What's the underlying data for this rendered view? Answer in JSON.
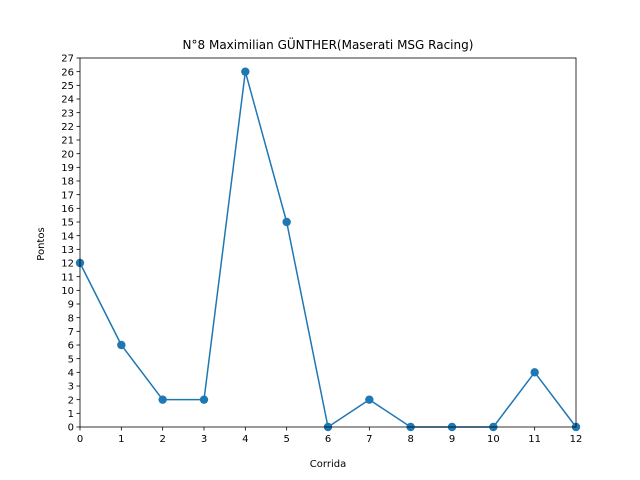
{
  "chart_data": {
    "type": "line",
    "title": "N°8 Maximilian GÜNTHER(Maserati MSG Racing)",
    "xlabel": "Corrida",
    "ylabel": "Pontos",
    "x": [
      0,
      1,
      2,
      3,
      4,
      5,
      6,
      7,
      8,
      9,
      10,
      11,
      12
    ],
    "values": [
      12,
      6,
      2,
      2,
      26,
      15,
      0,
      2,
      0,
      0,
      0,
      4,
      0
    ],
    "xlim": [
      0,
      12
    ],
    "ylim": [
      0,
      27
    ],
    "x_ticks": [
      "0",
      "1",
      "2",
      "3",
      "4",
      "5",
      "6",
      "7",
      "8",
      "9",
      "10",
      "11",
      "12"
    ],
    "y_ticks": [
      "0",
      "1",
      "2",
      "3",
      "4",
      "5",
      "6",
      "7",
      "8",
      "9",
      "10",
      "11",
      "12",
      "13",
      "14",
      "15",
      "16",
      "17",
      "18",
      "19",
      "20",
      "21",
      "22",
      "23",
      "24",
      "25",
      "26",
      "27"
    ],
    "grid": false,
    "line_color": "#1f77b4",
    "marker": "circle"
  }
}
